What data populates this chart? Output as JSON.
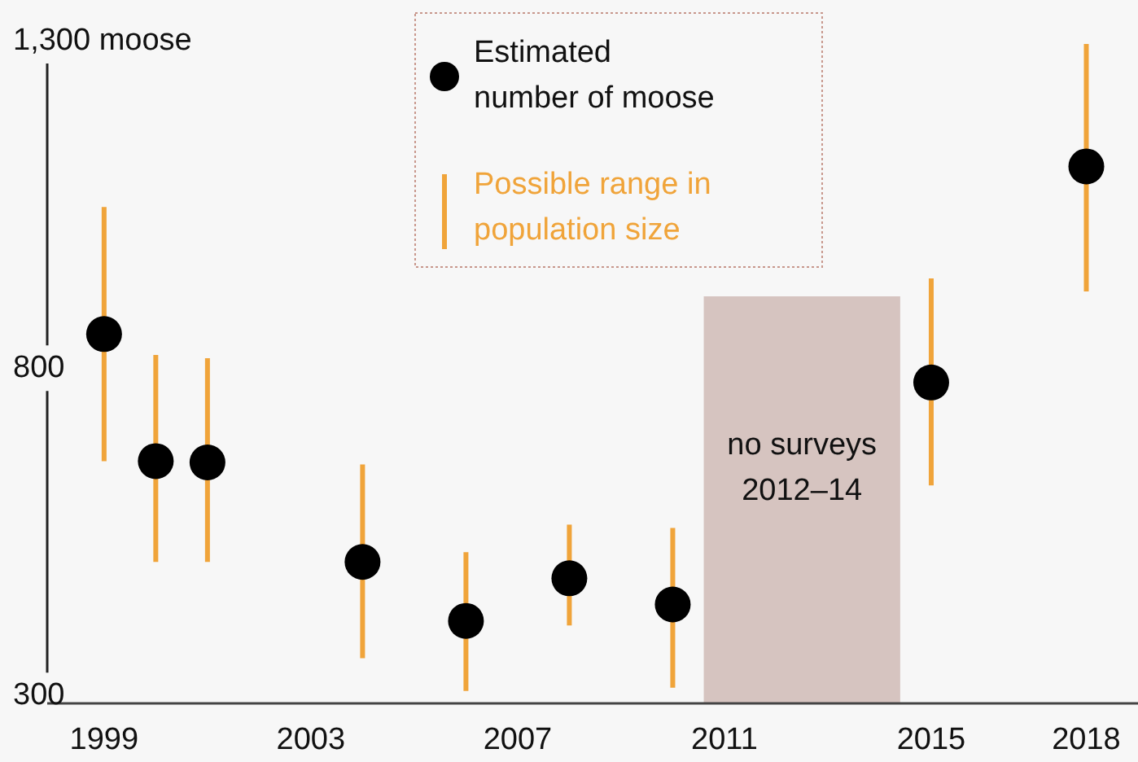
{
  "chart_data": {
    "type": "scatter",
    "x": [
      1999,
      2000,
      2001,
      2004,
      2006,
      2008,
      2010,
      2015,
      2018
    ],
    "series": [
      {
        "name": "Estimated number of moose",
        "color": "#000000",
        "values": [
          852,
          658,
          656,
          504,
          414,
          479,
          439,
          778,
          1108
        ],
        "errors": [
          [
            658,
            1046
          ],
          [
            504,
            820
          ],
          [
            504,
            815
          ],
          [
            357,
            653
          ],
          [
            307,
            519
          ],
          [
            407,
            561
          ],
          [
            312,
            556
          ],
          [
            621,
            937
          ],
          [
            917,
            1295
          ]
        ]
      }
    ],
    "annotations": [
      "Possible range in population size"
    ],
    "xlim": [
      1997.9,
      2019
    ],
    "xticks": [
      1999,
      2003,
      2007,
      2011,
      2015,
      2018
    ],
    "ylim": [
      288,
      1300
    ],
    "yticks": [
      300,
      800,
      {
        "value": 1300,
        "label": "1,300 moose"
      }
    ],
    "bands": [
      {
        "axis": "x",
        "from": 2010.6,
        "to": 2014.4,
        "label": "no surveys 2012–14",
        "color": "#d6c4c0"
      }
    ],
    "marker": "circle",
    "legend": "top",
    "grid": false
  }
}
